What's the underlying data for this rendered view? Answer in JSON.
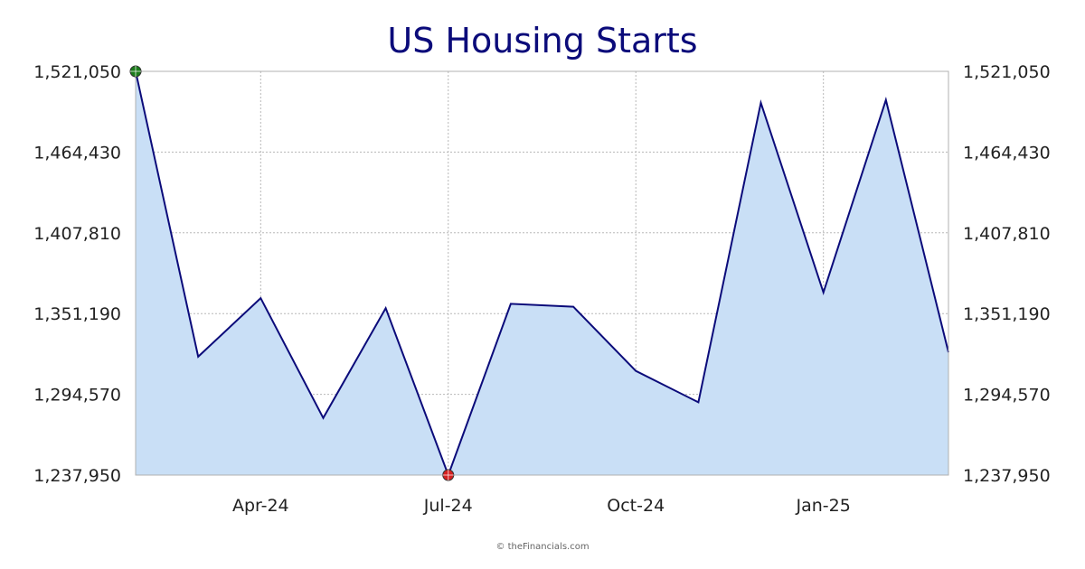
{
  "chart_data": {
    "type": "area",
    "title": "US Housing Starts",
    "xlabel": "",
    "ylabel": "",
    "x": [
      "Feb-24",
      "Mar-24",
      "Apr-24",
      "May-24",
      "Jun-24",
      "Jul-24",
      "Aug-24",
      "Sep-24",
      "Oct-24",
      "Nov-24",
      "Dec-24",
      "Jan-25",
      "Feb-25",
      "Mar-25"
    ],
    "values": [
      1521050,
      1321000,
      1362000,
      1278000,
      1355000,
      1237950,
      1358000,
      1356000,
      1311000,
      1289000,
      1499000,
      1366000,
      1501000,
      1324000
    ],
    "ylim": [
      1237950,
      1521050
    ],
    "yticks": [
      1237950,
      1294570,
      1351190,
      1407810,
      1464430,
      1521050
    ],
    "ytick_labels": [
      "1,237,950",
      "1,294,570",
      "1,351,190",
      "1,407,810",
      "1,464,430",
      "1,521,050"
    ],
    "xtick_labels": [
      {
        "index": 2,
        "label": "Apr-24"
      },
      {
        "index": 5,
        "label": "Jul-24"
      },
      {
        "index": 8,
        "label": "Oct-24"
      },
      {
        "index": 11,
        "label": "Jan-25"
      }
    ],
    "markers": [
      {
        "name": "max-marker",
        "index": 0,
        "color": "#1a7a1a"
      },
      {
        "name": "min-marker",
        "index": 5,
        "color": "#d42020"
      }
    ],
    "line_color": "#0b0b7a",
    "fill_color": "#c9dff6",
    "grid": true,
    "credit": "© theFinancials.com"
  }
}
